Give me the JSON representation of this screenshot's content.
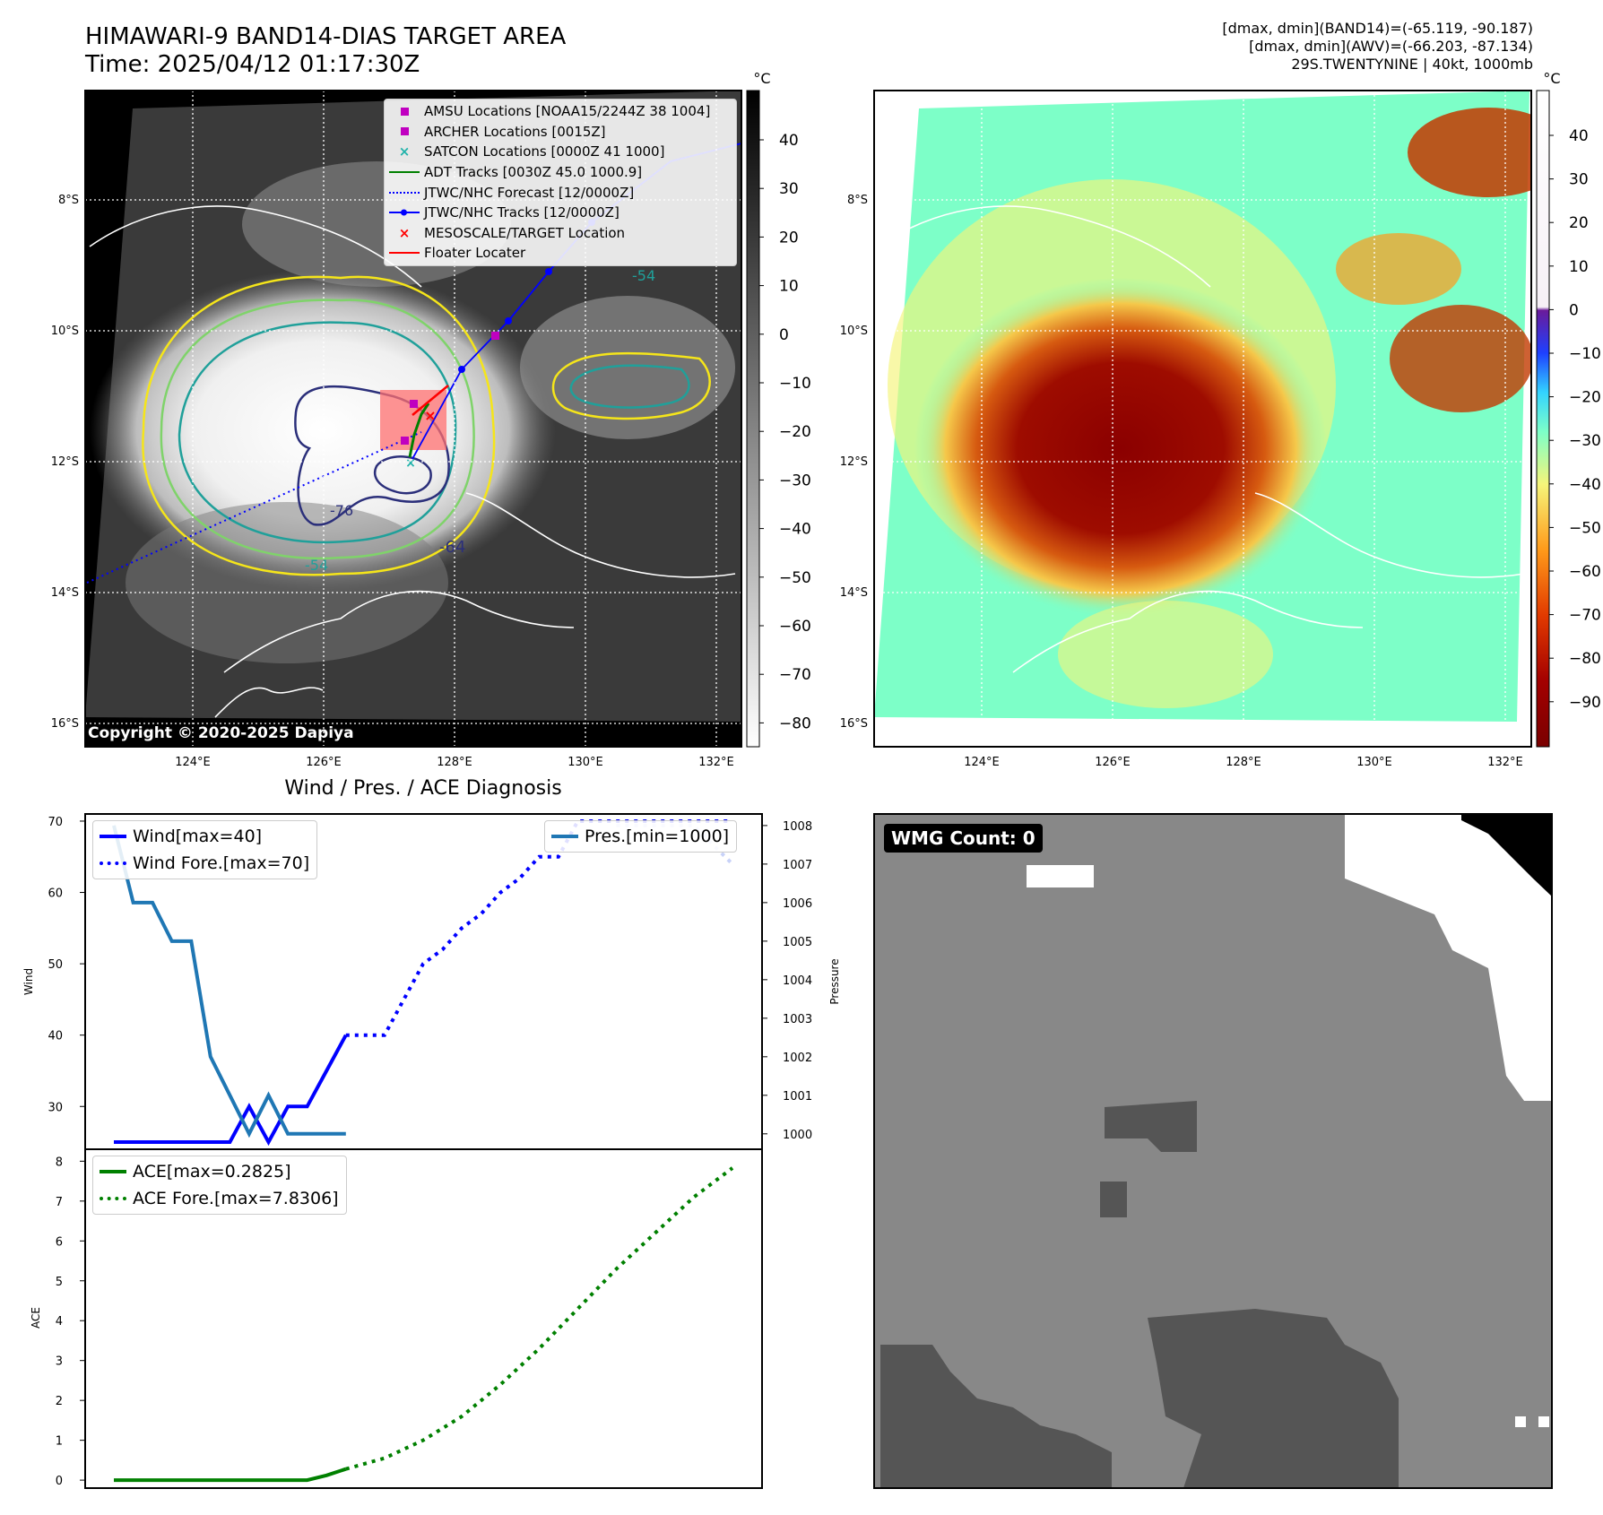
{
  "header": {
    "title_line1": "HIMAWARI-9 BAND14-DIAS TARGET AREA",
    "title_line2": "Time: 2025/04/12 01:17:30Z",
    "info_line1": "[dmax, dmin](BAND14)=(-65.119, -90.187)",
    "info_line2": "[dmax, dmin](AWV)=(-66.203, -87.134)",
    "info_line3": "29S.TWENTYNINE | 40kt, 1000mb"
  },
  "map_axes": {
    "lat_labels": [
      "8°S",
      "10°S",
      "12°S",
      "14°S",
      "16°S"
    ],
    "lon_labels": [
      "124°E",
      "126°E",
      "128°E",
      "130°E",
      "132°E"
    ]
  },
  "left_map": {
    "legend": [
      {
        "label": "AMSU Locations [NOAA15/2244Z 38 1004]",
        "symbol": "square",
        "color": "#c000c0"
      },
      {
        "label": "ARCHER Locations [0015Z]",
        "symbol": "square",
        "color": "#c000c0"
      },
      {
        "label": "SATCON Locations [0000Z 41 1000]",
        "symbol": "x",
        "color": "#20b2aa"
      },
      {
        "label": "ADT Tracks [0030Z 45.0 1000.9]",
        "symbol": "line",
        "color": "#008000"
      },
      {
        "label": "JTWC/NHC Forecast [12/0000Z]",
        "symbol": "dotted",
        "color": "#0000ff"
      },
      {
        "label": "JTWC/NHC Tracks [12/0000Z]",
        "symbol": "line-dot",
        "color": "#0000ff"
      },
      {
        "label": "MESOSCALE/TARGET Location",
        "symbol": "x",
        "color": "#ff0000"
      },
      {
        "label": "Floater Locater",
        "symbol": "line",
        "color": "#ff0000"
      }
    ],
    "contour_labels": [
      "-64",
      "-54",
      "-76",
      "-54"
    ],
    "copyright": "Copyright © 2020-2025 Dapiya",
    "colorbar_unit": "°C",
    "colorbar_ticks": [
      "40",
      "30",
      "20",
      "10",
      "0",
      "−10",
      "−20",
      "−30",
      "−40",
      "−50",
      "−60",
      "−70",
      "−80"
    ]
  },
  "right_map": {
    "colorbar_unit": "°C",
    "colorbar_ticks": [
      "40",
      "30",
      "20",
      "10",
      "0",
      "−10",
      "−20",
      "−30",
      "−40",
      "−50",
      "−60",
      "−70",
      "−80",
      "−90"
    ]
  },
  "diagnosis_title": "Wind / Pres. / ACE Diagnosis",
  "wmg_badge": "WMG Count: 0",
  "colors": {
    "wind": "#0000ff",
    "pressure": "#1f77b4",
    "ace": "#008000"
  },
  "chart_data": [
    {
      "type": "line",
      "title": "Wind / Pres. / ACE Diagnosis",
      "ylabel": "Wind",
      "ylabel_right": "Pressure",
      "ylim": [
        24,
        71
      ],
      "ylim_right": [
        999.6,
        1008.3
      ],
      "y_ticks": [
        30,
        40,
        50,
        60,
        70
      ],
      "y_ticks_right": [
        1000,
        1001,
        1002,
        1003,
        1004,
        1005,
        1006,
        1007,
        1008
      ],
      "x": [
        0,
        1,
        2,
        3,
        4,
        5,
        6,
        7,
        8,
        9,
        10,
        11,
        12,
        13,
        14,
        15,
        16,
        17,
        18,
        19,
        20,
        21,
        22,
        23,
        24,
        25,
        26,
        27,
        28,
        29,
        30,
        31,
        32
      ],
      "series": [
        {
          "name": "Wind[max=40]",
          "axis": "left",
          "style": "solid",
          "x": [
            0,
            1,
            2,
            3,
            4,
            5,
            6,
            7,
            8,
            9,
            10,
            11,
            12
          ],
          "values": [
            25,
            25,
            25,
            25,
            25,
            25,
            25,
            30,
            25,
            30,
            30,
            35,
            40
          ]
        },
        {
          "name": "Wind Fore.[max=70]",
          "axis": "left",
          "style": "dotted",
          "x": [
            12,
            14,
            15,
            16,
            17,
            18,
            19,
            20,
            21,
            22,
            23,
            24,
            25,
            26,
            32
          ],
          "values": [
            40,
            40,
            45,
            50,
            52,
            55,
            57,
            60,
            62,
            65,
            65,
            70,
            70,
            70,
            70
          ]
        },
        {
          "name": "Pres.[min=1000]",
          "axis": "right",
          "style": "solid",
          "x": [
            0,
            1,
            2,
            3,
            4,
            5,
            6,
            7,
            8,
            9,
            10,
            11,
            12
          ],
          "values": [
            1008,
            1006,
            1006,
            1005,
            1005,
            1002,
            1001,
            1000,
            1001,
            1000,
            1000,
            1000,
            1000
          ]
        },
        {
          "name": "",
          "axis": "right",
          "style": "dotted",
          "color": "#c8d2f8",
          "x": [
            26,
            30,
            32
          ],
          "values": [
            1008,
            1008,
            1007
          ]
        }
      ],
      "legend_left": [
        "Wind[max=40]",
        "Wind Fore.[max=70]"
      ],
      "legend_right": [
        "Pres.[min=1000]"
      ]
    },
    {
      "type": "line",
      "ylabel": "ACE",
      "ylim": [
        -0.2,
        8.3
      ],
      "y_ticks": [
        0,
        1,
        2,
        3,
        4,
        5,
        6,
        7,
        8
      ],
      "series": [
        {
          "name": "ACE[max=0.2825]",
          "style": "solid",
          "x": [
            0,
            2,
            4,
            6,
            8,
            10,
            11,
            12
          ],
          "values": [
            0,
            0,
            0,
            0,
            0,
            0,
            0.12,
            0.28
          ]
        },
        {
          "name": "ACE Fore.[max=7.8306]",
          "style": "dotted",
          "x": [
            12,
            14,
            16,
            18,
            20,
            22,
            24,
            26,
            28,
            30,
            32
          ],
          "values": [
            0.28,
            0.55,
            1.0,
            1.6,
            2.4,
            3.3,
            4.3,
            5.3,
            6.2,
            7.1,
            7.83
          ]
        }
      ],
      "legend": [
        "ACE[max=0.2825]",
        "ACE Fore.[max=7.8306]"
      ]
    }
  ]
}
